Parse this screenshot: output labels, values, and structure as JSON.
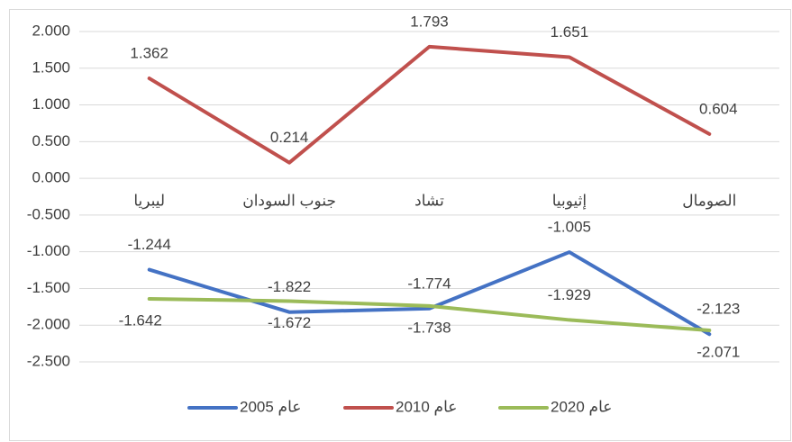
{
  "chart_data": {
    "type": "line",
    "categories": [
      "ليبريا",
      "جنوب السودان",
      "تشاد",
      "إثيوبيا",
      "الصومال"
    ],
    "series": [
      {
        "name": "عام 2005",
        "color": "#4472c4",
        "values": [
          -1.244,
          -1.822,
          -1.774,
          -1.005,
          -2.123
        ]
      },
      {
        "name": "عام 2010",
        "color": "#c0504d",
        "values": [
          1.362,
          0.214,
          1.793,
          1.651,
          0.604
        ]
      },
      {
        "name": "عام 2020",
        "color": "#9bbb59",
        "values": [
          -1.642,
          -1.672,
          -1.738,
          -1.929,
          -2.071
        ]
      }
    ],
    "ylim": [
      -2.5,
      2
    ],
    "yticks": [
      {
        "value": 2,
        "label": "2.000"
      },
      {
        "value": 1.5,
        "label": "1.500"
      },
      {
        "value": 1,
        "label": "1.000"
      },
      {
        "value": 0.5,
        "label": "0.500"
      },
      {
        "value": 0,
        "label": "0.000"
      },
      {
        "value": -0.5,
        "label": "-0.500"
      },
      {
        "value": -1,
        "label": "-1.000"
      },
      {
        "value": -1.5,
        "label": "-1.500"
      },
      {
        "value": -2,
        "label": "-2.000"
      },
      {
        "value": -2.5,
        "label": "-2.500"
      }
    ],
    "grid": true,
    "legend": "bottom"
  }
}
